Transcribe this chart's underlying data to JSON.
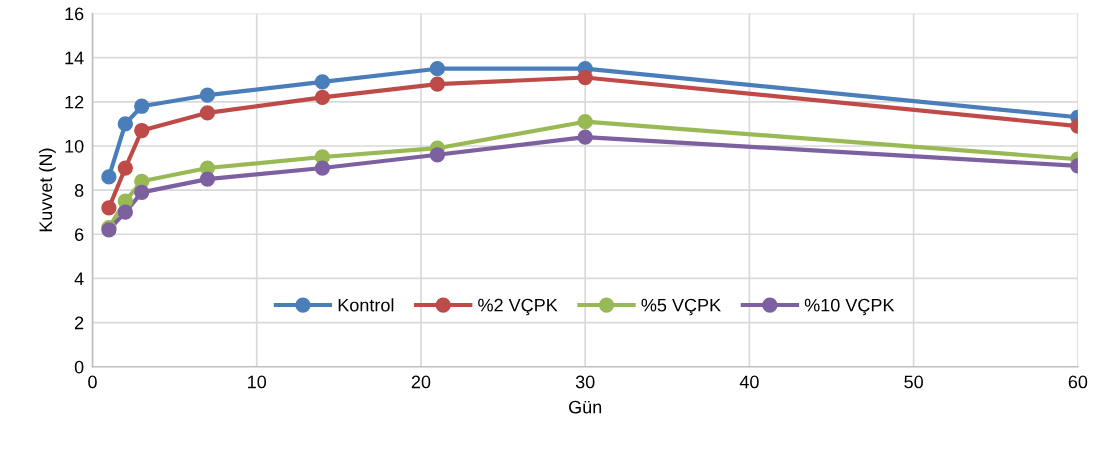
{
  "chart_data": {
    "type": "line",
    "xlabel": "Gün",
    "ylabel": "Kuvvet (N)",
    "x": [
      1,
      2,
      3,
      7,
      14,
      21,
      30,
      60
    ],
    "series": [
      {
        "name": "Kontrol",
        "color": "#4a7ebb",
        "values": [
          8.6,
          11.0,
          11.8,
          12.3,
          12.9,
          13.5,
          13.5,
          11.3
        ]
      },
      {
        "name": "%2 VÇPK",
        "color": "#be4b48",
        "values": [
          7.2,
          9.0,
          10.7,
          11.5,
          12.2,
          12.8,
          13.1,
          10.9
        ]
      },
      {
        "name": "%5 VÇPK",
        "color": "#98b954",
        "values": [
          6.3,
          7.5,
          8.4,
          9.0,
          9.5,
          9.9,
          11.1,
          9.4
        ]
      },
      {
        "name": "%10 VÇPK",
        "color": "#7d60a0",
        "values": [
          6.2,
          7.0,
          7.9,
          8.5,
          9.0,
          9.6,
          10.4,
          9.1
        ]
      }
    ],
    "xlim": [
      0,
      60
    ],
    "xticks": [
      0,
      10,
      20,
      30,
      40,
      50,
      60
    ],
    "ylim": [
      0,
      16
    ],
    "yticks": [
      0,
      2,
      4,
      6,
      8,
      10,
      12,
      14,
      16
    ],
    "grid": true,
    "legend": "bottom",
    "marker": "circle",
    "line_style": "solid"
  }
}
